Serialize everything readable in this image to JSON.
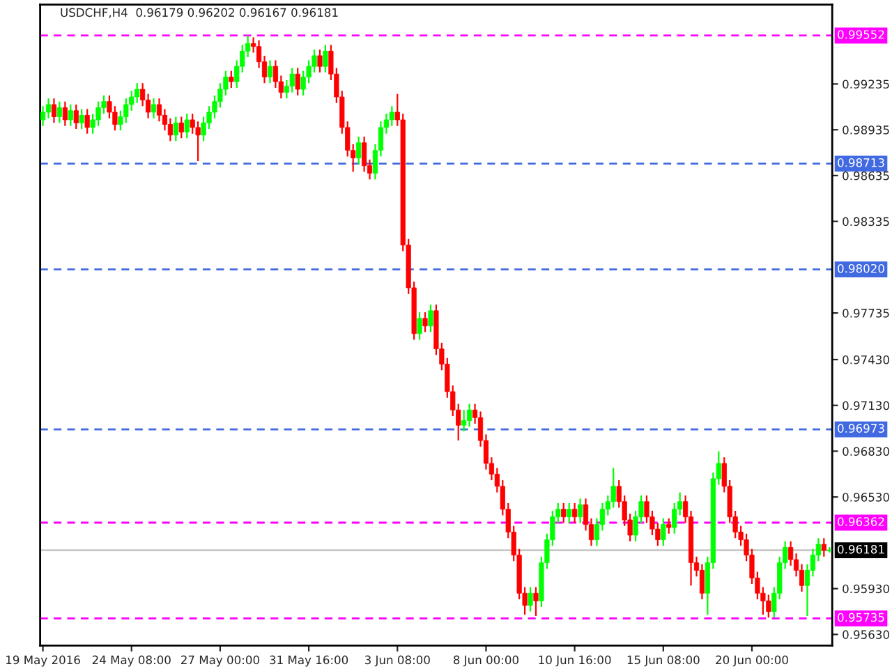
{
  "chart_data": {
    "type": "candlestick",
    "title": "USDCHF,H4  0.96179 0.96202 0.96167 0.96181",
    "categories": [
      "19 May 2016",
      null,
      null,
      null,
      null,
      null,
      null,
      null,
      null,
      null,
      null,
      null,
      null,
      null,
      null,
      null,
      "24 May 08:00",
      null,
      null,
      null,
      null,
      null,
      null,
      null,
      null,
      null,
      null,
      null,
      null,
      null,
      null,
      null,
      "27 May 00:00",
      null,
      null,
      null,
      null,
      null,
      null,
      null,
      null,
      null,
      null,
      null,
      null,
      null,
      null,
      null,
      "31 May 16:00",
      null,
      null,
      null,
      null,
      null,
      null,
      null,
      null,
      null,
      null,
      null,
      null,
      null,
      null,
      null,
      "3 Jun 08:00",
      null,
      null,
      null,
      null,
      null,
      null,
      null,
      null,
      null,
      null,
      null,
      null,
      null,
      null,
      null,
      "8 Jun 00:00",
      null,
      null,
      null,
      null,
      null,
      null,
      null,
      null,
      null,
      null,
      null,
      null,
      null,
      null,
      null,
      "10 Jun 16:00",
      null,
      null,
      null,
      null,
      null,
      null,
      null,
      null,
      null,
      null,
      null,
      null,
      null,
      null,
      null,
      "15 Jun 08:00",
      null,
      null,
      null,
      null,
      null,
      null,
      null,
      null,
      null,
      null,
      null,
      null,
      null,
      null,
      null,
      "20 Jun 00:00",
      null,
      null,
      null,
      null,
      null,
      null,
      null,
      null,
      null,
      null,
      null,
      null,
      null,
      null
    ],
    "ohlc": [
      [
        0.99,
        0.9909,
        0.9896,
        0.9905
      ],
      [
        0.9905,
        0.9914,
        0.9901,
        0.991
      ],
      [
        0.991,
        0.9914,
        0.9898,
        0.9902
      ],
      [
        0.9902,
        0.9912,
        0.9898,
        0.9908
      ],
      [
        0.9908,
        0.9912,
        0.9896,
        0.99
      ],
      [
        0.99,
        0.991,
        0.9896,
        0.9906
      ],
      [
        0.9906,
        0.991,
        0.9894,
        0.9898
      ],
      [
        0.9898,
        0.9907,
        0.9894,
        0.9903
      ],
      [
        0.9903,
        0.9907,
        0.9891,
        0.9895
      ],
      [
        0.9895,
        0.9904,
        0.9891,
        0.99
      ],
      [
        0.99,
        0.9912,
        0.9896,
        0.9908
      ],
      [
        0.9908,
        0.9916,
        0.9904,
        0.9912
      ],
      [
        0.9912,
        0.9916,
        0.9901,
        0.9905
      ],
      [
        0.9905,
        0.9909,
        0.9893,
        0.9897
      ],
      [
        0.9897,
        0.9906,
        0.9893,
        0.9902
      ],
      [
        0.9902,
        0.9914,
        0.9898,
        0.991
      ],
      [
        0.991,
        0.9919,
        0.9906,
        0.9915
      ],
      [
        0.9915,
        0.9924,
        0.9911,
        0.992
      ],
      [
        0.992,
        0.9924,
        0.9909,
        0.9913
      ],
      [
        0.9913,
        0.9917,
        0.9901,
        0.9905
      ],
      [
        0.9905,
        0.9914,
        0.9901,
        0.991
      ],
      [
        0.991,
        0.9914,
        0.9899,
        0.9903
      ],
      [
        0.9903,
        0.9907,
        0.9893,
        0.9897
      ],
      [
        0.9897,
        0.9901,
        0.9886,
        0.989
      ],
      [
        0.989,
        0.9902,
        0.9886,
        0.9898
      ],
      [
        0.9898,
        0.9902,
        0.9888,
        0.9892
      ],
      [
        0.9892,
        0.9904,
        0.9888,
        0.99
      ],
      [
        0.99,
        0.9904,
        0.9891,
        0.9895
      ],
      [
        0.9895,
        0.9899,
        0.9873,
        0.989
      ],
      [
        0.989,
        0.9902,
        0.9886,
        0.9898
      ],
      [
        0.9898,
        0.9909,
        0.9894,
        0.9905
      ],
      [
        0.9905,
        0.9916,
        0.9901,
        0.9912
      ],
      [
        0.9912,
        0.9924,
        0.9908,
        0.992
      ],
      [
        0.992,
        0.9932,
        0.9916,
        0.9928
      ],
      [
        0.9928,
        0.9932,
        0.9921,
        0.9925
      ],
      [
        0.9925,
        0.9939,
        0.9921,
        0.9935
      ],
      [
        0.9935,
        0.9949,
        0.9931,
        0.9945
      ],
      [
        0.9945,
        0.9955,
        0.9941,
        0.995
      ],
      [
        0.995,
        0.9954,
        0.9944,
        0.9948
      ],
      [
        0.9948,
        0.9952,
        0.9934,
        0.9938
      ],
      [
        0.9938,
        0.9942,
        0.9924,
        0.9928
      ],
      [
        0.9928,
        0.9939,
        0.9924,
        0.9935
      ],
      [
        0.9935,
        0.9939,
        0.9921,
        0.9925
      ],
      [
        0.9925,
        0.9929,
        0.9914,
        0.9918
      ],
      [
        0.9918,
        0.9926,
        0.9914,
        0.9922
      ],
      [
        0.9922,
        0.9934,
        0.9918,
        0.993
      ],
      [
        0.993,
        0.9934,
        0.9916,
        0.992
      ],
      [
        0.992,
        0.9932,
        0.9916,
        0.9928
      ],
      [
        0.9928,
        0.9939,
        0.9924,
        0.9935
      ],
      [
        0.9935,
        0.9946,
        0.9931,
        0.9942
      ],
      [
        0.9942,
        0.9946,
        0.9931,
        0.9935
      ],
      [
        0.9935,
        0.9949,
        0.9931,
        0.9945
      ],
      [
        0.9945,
        0.9949,
        0.9926,
        0.993
      ],
      [
        0.993,
        0.9934,
        0.9911,
        0.9915
      ],
      [
        0.9915,
        0.9919,
        0.9891,
        0.9895
      ],
      [
        0.9895,
        0.9899,
        0.9876,
        0.988
      ],
      [
        0.988,
        0.9884,
        0.9866,
        0.9875
      ],
      [
        0.9875,
        0.9889,
        0.9871,
        0.9885
      ],
      [
        0.9885,
        0.9889,
        0.9866,
        0.987
      ],
      [
        0.987,
        0.9874,
        0.9861,
        0.9865
      ],
      [
        0.9865,
        0.9884,
        0.9861,
        0.988
      ],
      [
        0.988,
        0.9899,
        0.9876,
        0.9895
      ],
      [
        0.9895,
        0.9904,
        0.9891,
        0.99
      ],
      [
        0.99,
        0.9909,
        0.9896,
        0.9905
      ],
      [
        0.9905,
        0.9917,
        0.9896,
        0.99
      ],
      [
        0.99,
        0.9904,
        0.9814,
        0.9818
      ],
      [
        0.9818,
        0.9822,
        0.9786,
        0.979
      ],
      [
        0.979,
        0.9794,
        0.9756,
        0.976
      ],
      [
        0.976,
        0.9774,
        0.9756,
        0.977
      ],
      [
        0.977,
        0.9774,
        0.9761,
        0.9765
      ],
      [
        0.9765,
        0.9779,
        0.9761,
        0.9775
      ],
      [
        0.9775,
        0.9779,
        0.9746,
        0.975
      ],
      [
        0.975,
        0.9754,
        0.9736,
        0.974
      ],
      [
        0.974,
        0.9744,
        0.9718,
        0.9722
      ],
      [
        0.9722,
        0.9726,
        0.9706,
        0.971
      ],
      [
        0.971,
        0.9714,
        0.969,
        0.97
      ],
      [
        0.97,
        0.971,
        0.9696,
        0.9703
      ],
      [
        0.9703,
        0.9714,
        0.9699,
        0.971
      ],
      [
        0.971,
        0.9714,
        0.9701,
        0.9705
      ],
      [
        0.9705,
        0.9709,
        0.9686,
        0.969
      ],
      [
        0.969,
        0.9694,
        0.9671,
        0.9675
      ],
      [
        0.9675,
        0.9679,
        0.9664,
        0.9668
      ],
      [
        0.9668,
        0.9672,
        0.9656,
        0.966
      ],
      [
        0.966,
        0.9664,
        0.9641,
        0.9645
      ],
      [
        0.9645,
        0.9649,
        0.9626,
        0.963
      ],
      [
        0.963,
        0.9634,
        0.9611,
        0.9615
      ],
      [
        0.9615,
        0.9619,
        0.9586,
        0.959
      ],
      [
        0.959,
        0.9594,
        0.9576,
        0.9582
      ],
      [
        0.9582,
        0.9594,
        0.9578,
        0.959
      ],
      [
        0.959,
        0.9594,
        0.9575,
        0.9585
      ],
      [
        0.9585,
        0.9614,
        0.9581,
        0.961
      ],
      [
        0.961,
        0.9629,
        0.9606,
        0.9625
      ],
      [
        0.9625,
        0.9644,
        0.9621,
        0.964
      ],
      [
        0.964,
        0.9649,
        0.9636,
        0.9645
      ],
      [
        0.9645,
        0.9649,
        0.9636,
        0.964
      ],
      [
        0.964,
        0.9649,
        0.9636,
        0.9645
      ],
      [
        0.9645,
        0.9649,
        0.9636,
        0.964
      ],
      [
        0.964,
        0.9652,
        0.9636,
        0.9648
      ],
      [
        0.9648,
        0.9652,
        0.9631,
        0.9635
      ],
      [
        0.9635,
        0.9639,
        0.9621,
        0.9625
      ],
      [
        0.9625,
        0.9639,
        0.9621,
        0.9635
      ],
      [
        0.9635,
        0.9649,
        0.9631,
        0.9645
      ],
      [
        0.9645,
        0.9654,
        0.9641,
        0.965
      ],
      [
        0.965,
        0.9672,
        0.9646,
        0.966
      ],
      [
        0.966,
        0.9664,
        0.9646,
        0.965
      ],
      [
        0.965,
        0.9654,
        0.9634,
        0.9638
      ],
      [
        0.9638,
        0.9642,
        0.9624,
        0.9628
      ],
      [
        0.9628,
        0.9644,
        0.9624,
        0.964
      ],
      [
        0.964,
        0.9654,
        0.9636,
        0.965
      ],
      [
        0.965,
        0.9654,
        0.9636,
        0.964
      ],
      [
        0.964,
        0.9644,
        0.9628,
        0.9632
      ],
      [
        0.9632,
        0.9636,
        0.9621,
        0.9625
      ],
      [
        0.9625,
        0.9639,
        0.9621,
        0.9635
      ],
      [
        0.9635,
        0.9639,
        0.9629,
        0.9633
      ],
      [
        0.9633,
        0.9649,
        0.9629,
        0.9645
      ],
      [
        0.9645,
        0.9656,
        0.9641,
        0.965
      ],
      [
        0.965,
        0.9654,
        0.9636,
        0.964
      ],
      [
        0.964,
        0.9644,
        0.9595,
        0.961
      ],
      [
        0.961,
        0.9614,
        0.9601,
        0.9605
      ],
      [
        0.9605,
        0.9609,
        0.9586,
        0.959
      ],
      [
        0.959,
        0.9614,
        0.9576,
        0.961
      ],
      [
        0.961,
        0.9669,
        0.9606,
        0.9665
      ],
      [
        0.9665,
        0.9683,
        0.9661,
        0.9675
      ],
      [
        0.9675,
        0.9679,
        0.9656,
        0.966
      ],
      [
        0.966,
        0.9664,
        0.9636,
        0.964
      ],
      [
        0.964,
        0.9644,
        0.9626,
        0.963
      ],
      [
        0.963,
        0.9634,
        0.9621,
        0.9625
      ],
      [
        0.9625,
        0.9629,
        0.9611,
        0.9615
      ],
      [
        0.9615,
        0.9619,
        0.9596,
        0.96
      ],
      [
        0.96,
        0.9604,
        0.9586,
        0.959
      ],
      [
        0.959,
        0.9594,
        0.9576,
        0.9585
      ],
      [
        0.9585,
        0.9589,
        0.9574,
        0.9578
      ],
      [
        0.9578,
        0.9594,
        0.9574,
        0.959
      ],
      [
        0.959,
        0.9614,
        0.9586,
        0.961
      ],
      [
        0.961,
        0.9624,
        0.9606,
        0.962
      ],
      [
        0.962,
        0.9624,
        0.9608,
        0.9612
      ],
      [
        0.9612,
        0.9616,
        0.9601,
        0.9605
      ],
      [
        0.9605,
        0.9609,
        0.9591,
        0.9595
      ],
      [
        0.9595,
        0.9609,
        0.9575,
        0.9605
      ],
      [
        0.9605,
        0.9619,
        0.9601,
        0.9615
      ],
      [
        0.9615,
        0.9626,
        0.9611,
        0.9622
      ],
      [
        0.9622,
        0.9626,
        0.9614,
        0.9618
      ],
      [
        0.96179,
        0.96202,
        0.96167,
        0.96181
      ]
    ],
    "colors": [
      "#00ff00",
      "#00ff00",
      "#ff0000",
      "#00ff00",
      "#ff0000",
      "#00ff00",
      "#ff0000",
      "#00ff00",
      "#ff0000",
      "#00ff00",
      "#00ff00",
      "#00ff00",
      "#ff0000",
      "#ff0000",
      "#00ff00",
      "#00ff00",
      "#00ff00",
      "#00ff00",
      "#ff0000",
      "#ff0000",
      "#00ff00",
      "#ff0000",
      "#ff0000",
      "#ff0000",
      "#00ff00",
      "#ff0000",
      "#00ff00",
      "#ff0000",
      "#ff0000",
      "#00ff00",
      "#00ff00",
      "#00ff00",
      "#00ff00",
      "#00ff00",
      "#ff0000",
      "#00ff00",
      "#00ff00",
      "#00ff00",
      "#ff0000",
      "#ff0000",
      "#ff0000",
      "#00ff00",
      "#ff0000",
      "#ff0000",
      "#00ff00",
      "#00ff00",
      "#ff0000",
      "#00ff00",
      "#00ff00",
      "#00ff00",
      "#ff0000",
      "#00ff00",
      "#ff0000",
      "#ff0000",
      "#ff0000",
      "#ff0000",
      "#ff0000",
      "#00ff00",
      "#ff0000",
      "#ff0000",
      "#00ff00",
      "#00ff00",
      "#00ff00",
      "#00ff00",
      "#ff0000",
      "#ff0000",
      "#ff0000",
      "#ff0000",
      "#00ff00",
      "#ff0000",
      "#00ff00",
      "#ff0000",
      "#ff0000",
      "#ff0000",
      "#ff0000",
      "#ff0000",
      "#00ff00",
      "#00ff00",
      "#ff0000",
      "#ff0000",
      "#ff0000",
      "#ff0000",
      "#ff0000",
      "#ff0000",
      "#ff0000",
      "#ff0000",
      "#ff0000",
      "#ff0000",
      "#00ff00",
      "#ff0000",
      "#00ff00",
      "#00ff00",
      "#00ff00",
      "#00ff00",
      "#ff0000",
      "#00ff00",
      "#ff0000",
      "#00ff00",
      "#ff0000",
      "#ff0000",
      "#00ff00",
      "#00ff00",
      "#00ff00",
      "#00ff00",
      "#ff0000",
      "#ff0000",
      "#ff0000",
      "#00ff00",
      "#00ff00",
      "#ff0000",
      "#ff0000",
      "#ff0000",
      "#00ff00",
      "#ff0000",
      "#00ff00",
      "#00ff00",
      "#ff0000",
      "#ff0000",
      "#ff0000",
      "#ff0000",
      "#00ff00",
      "#00ff00",
      "#00ff00",
      "#ff0000",
      "#ff0000",
      "#ff0000",
      "#ff0000",
      "#ff0000",
      "#ff0000",
      "#ff0000",
      "#ff0000",
      "#ff0000",
      "#00ff00",
      "#00ff00",
      "#00ff00",
      "#ff0000",
      "#ff0000",
      "#ff0000",
      "#00ff00",
      "#00ff00",
      "#00ff00",
      "#ff0000",
      "#00ff00"
    ],
    "ylim": [
      0.95557,
      0.99754
    ],
    "yticks": [
      0.99235,
      0.98935,
      0.98635,
      0.98335,
      0.97735,
      {
        "value": 0.9743,
        "label": "0.97430"
      },
      {
        "value": 0.9713,
        "label": "0.97130"
      },
      {
        "value": 0.9683,
        "label": "0.96830"
      },
      {
        "value": 0.9653,
        "label": "0.96530"
      },
      {
        "value": 0.9593,
        "label": "0.95930"
      },
      {
        "value": 0.9563,
        "label": "0.95630"
      }
    ],
    "ref_lines": [
      {
        "axis": "y",
        "value": 0.99552,
        "label": "0.99552",
        "color": "#ff00ff",
        "line_style": "dashed"
      },
      {
        "axis": "y",
        "value": 0.98713,
        "label": "0.98713",
        "color": "#4169e1",
        "line_style": "dashed"
      },
      {
        "axis": "y",
        "value": 0.9802,
        "label": "0.98020",
        "color": "#4169e1",
        "line_style": "dashed"
      },
      {
        "axis": "y",
        "value": 0.96973,
        "label": "0.96973",
        "color": "#4169e1",
        "line_style": "dashed"
      },
      {
        "axis": "y",
        "value": 0.96362,
        "label": "0.96362",
        "color": "#ff00ff",
        "line_style": "dashed"
      },
      {
        "axis": "y",
        "value": 0.96181,
        "label": "0.96181",
        "color": "#c8c8c8",
        "line_style": "solid"
      },
      {
        "axis": "y",
        "value": 0.95735,
        "label": "0.95735",
        "color": "#ff00ff",
        "line_style": "dashed"
      }
    ],
    "grid": false,
    "legend": false
  }
}
